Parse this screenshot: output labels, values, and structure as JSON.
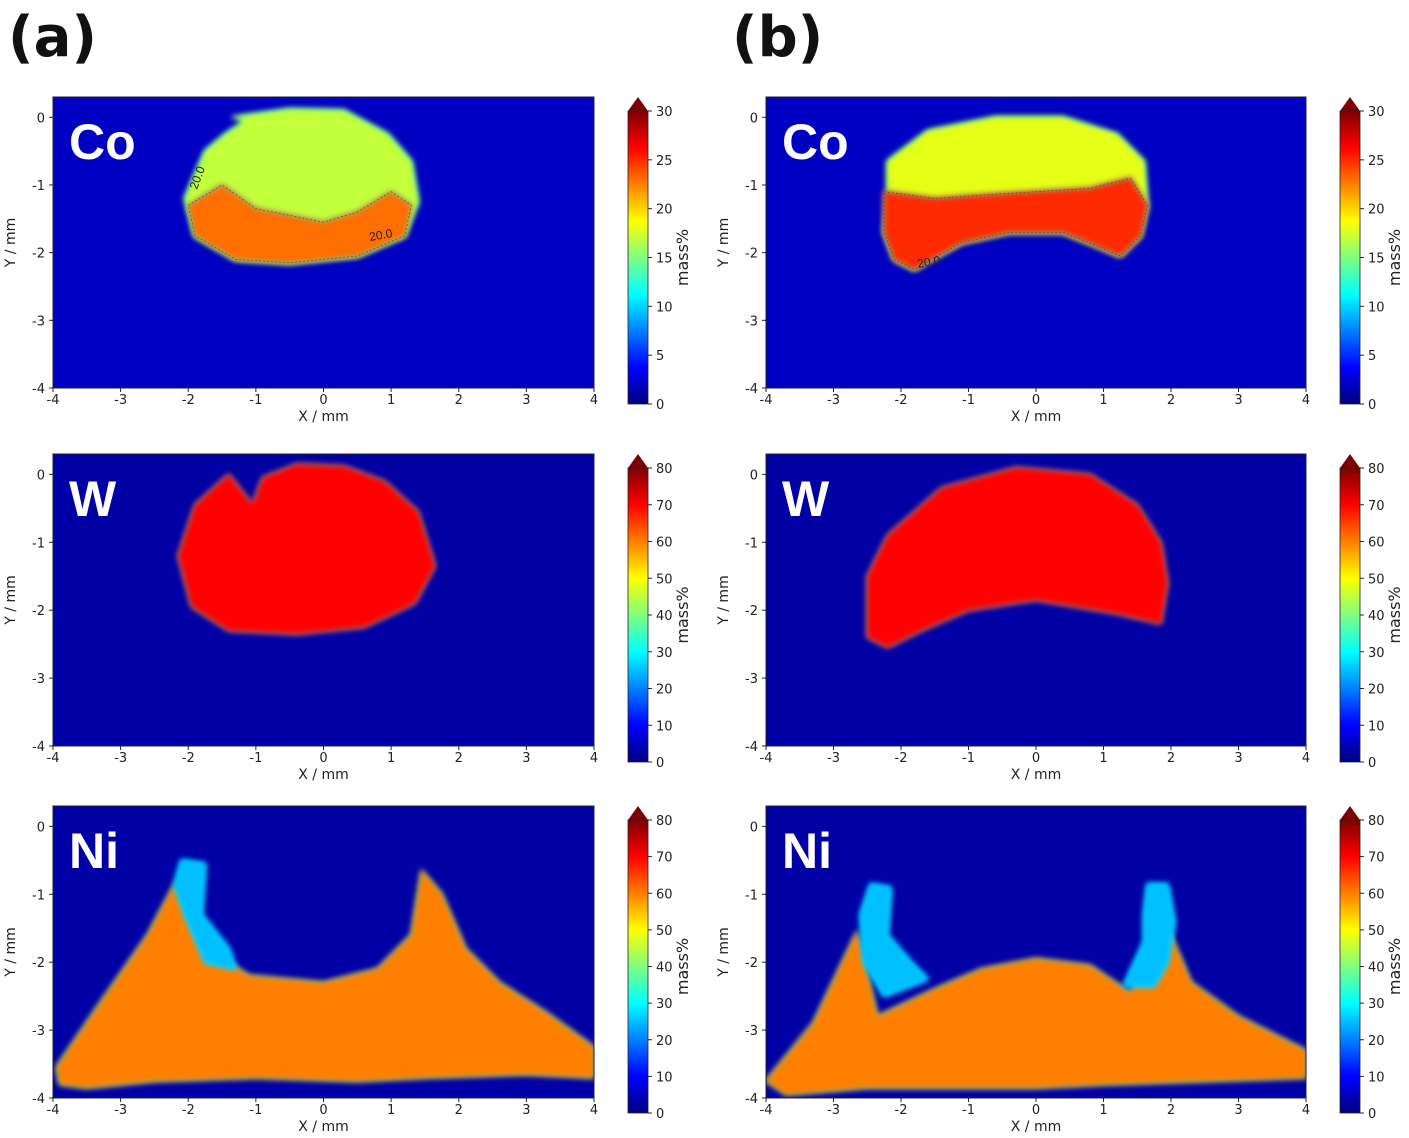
{
  "figure": {
    "panel_labels": [
      "(a)",
      "(b)"
    ]
  },
  "colormap": [
    "#00007f",
    "#0000ff",
    "#007fff",
    "#00ffff",
    "#7fff7f",
    "#ffff00",
    "#ff7f00",
    "#ff0000",
    "#7f0000"
  ],
  "chart_data": [
    {
      "type": "heatmap",
      "panel": "(a)",
      "element": "Co",
      "xlabel": "X / mm",
      "ylabel": "Y / mm",
      "cbar_label": "mass%",
      "xlim": [
        -4,
        4
      ],
      "ylim": [
        -4,
        0.3
      ],
      "xticks": [
        "-4",
        "-3",
        "-2",
        "-1",
        "0",
        "1",
        "2",
        "3",
        "4"
      ],
      "yticks": [
        "0",
        "-1",
        "-2",
        "-3",
        "-4"
      ],
      "cbar_range": [
        0,
        30
      ],
      "cbar_ticks": [
        "0",
        "5",
        "10",
        "15",
        "20",
        "25",
        "30"
      ],
      "background_value": 2,
      "regions": [
        {
          "name": "deposit",
          "value": 17,
          "outline": [
            [
              -1.35,
              0.0
            ],
            [
              -0.5,
              0.12
            ],
            [
              0.3,
              0.1
            ],
            [
              0.95,
              -0.25
            ],
            [
              1.3,
              -0.65
            ],
            [
              1.4,
              -1.25
            ],
            [
              1.2,
              -1.75
            ],
            [
              0.5,
              -2.05
            ],
            [
              -0.5,
              -2.15
            ],
            [
              -1.3,
              -2.1
            ],
            [
              -1.9,
              -1.75
            ],
            [
              -2.05,
              -1.2
            ],
            [
              -1.75,
              -0.5
            ],
            [
              -1.45,
              -0.25
            ],
            [
              -1.15,
              -0.05
            ]
          ]
        },
        {
          "name": "co-rich-lower-band",
          "value": 23,
          "outline": [
            [
              -2.0,
              -1.3
            ],
            [
              -1.5,
              -1.0
            ],
            [
              -1.0,
              -1.35
            ],
            [
              -0.5,
              -1.45
            ],
            [
              0.0,
              -1.55
            ],
            [
              0.5,
              -1.4
            ],
            [
              1.0,
              -1.1
            ],
            [
              1.3,
              -1.3
            ],
            [
              1.2,
              -1.75
            ],
            [
              0.5,
              -2.05
            ],
            [
              -0.5,
              -2.15
            ],
            [
              -1.3,
              -2.1
            ],
            [
              -1.9,
              -1.75
            ]
          ]
        }
      ],
      "contours": [
        {
          "label": "20.0"
        },
        {
          "label": "20.0"
        }
      ]
    },
    {
      "type": "heatmap",
      "panel": "(b)",
      "element": "Co",
      "xlabel": "X / mm",
      "ylabel": "Y / mm",
      "cbar_label": "mass%",
      "xlim": [
        -4,
        4
      ],
      "ylim": [
        -4,
        0.3
      ],
      "xticks": [
        "-4",
        "-3",
        "-2",
        "-1",
        "0",
        "1",
        "2",
        "3",
        "4"
      ],
      "yticks": [
        "0",
        "-1",
        "-2",
        "-3",
        "-4"
      ],
      "cbar_range": [
        0,
        30
      ],
      "cbar_ticks": [
        "0",
        "5",
        "10",
        "15",
        "20",
        "25",
        "30"
      ],
      "background_value": 2,
      "regions": [
        {
          "name": "deposit",
          "value": 18,
          "outline": [
            [
              -2.2,
              -0.65
            ],
            [
              -1.6,
              -0.2
            ],
            [
              -0.6,
              0.0
            ],
            [
              0.4,
              0.0
            ],
            [
              1.2,
              -0.25
            ],
            [
              1.6,
              -0.65
            ],
            [
              1.65,
              -1.3
            ],
            [
              1.55,
              -1.75
            ],
            [
              1.25,
              -2.05
            ],
            [
              0.9,
              -1.9
            ],
            [
              0.4,
              -1.7
            ],
            [
              -0.4,
              -1.7
            ],
            [
              -1.1,
              -1.85
            ],
            [
              -1.55,
              -2.1
            ],
            [
              -1.8,
              -2.25
            ],
            [
              -2.1,
              -2.1
            ],
            [
              -2.25,
              -1.7
            ],
            [
              -2.2,
              -1.2
            ]
          ]
        },
        {
          "name": "co-rich-lower-band",
          "value": 25,
          "outline": [
            [
              -2.25,
              -1.1
            ],
            [
              -1.5,
              -1.2
            ],
            [
              -0.8,
              -1.15
            ],
            [
              0.0,
              -1.1
            ],
            [
              0.8,
              -1.05
            ],
            [
              1.4,
              -0.9
            ],
            [
              1.65,
              -1.3
            ],
            [
              1.55,
              -1.75
            ],
            [
              1.25,
              -2.05
            ],
            [
              0.9,
              -1.9
            ],
            [
              0.4,
              -1.7
            ],
            [
              -0.4,
              -1.7
            ],
            [
              -1.1,
              -1.85
            ],
            [
              -1.55,
              -2.1
            ],
            [
              -1.8,
              -2.25
            ],
            [
              -2.1,
              -2.1
            ],
            [
              -2.25,
              -1.7
            ]
          ]
        }
      ],
      "contours": [
        {
          "label": "20.0"
        }
      ]
    },
    {
      "type": "heatmap",
      "panel": "(a)",
      "element": "W",
      "xlabel": "X / mm",
      "ylabel": "Y / mm",
      "cbar_label": "mass%",
      "xlim": [
        -4,
        4
      ],
      "ylim": [
        -4,
        0.3
      ],
      "xticks": [
        "-4",
        "-3",
        "-2",
        "-1",
        "0",
        "1",
        "2",
        "3",
        "4"
      ],
      "yticks": [
        "0",
        "-1",
        "-2",
        "-3",
        "-4"
      ],
      "cbar_range": [
        0,
        80
      ],
      "cbar_ticks": [
        "0",
        "10",
        "20",
        "30",
        "40",
        "50",
        "60",
        "70",
        "80"
      ],
      "background_value": 3,
      "regions": [
        {
          "name": "deposit",
          "value": 70,
          "outline": [
            [
              -1.4,
              0.0
            ],
            [
              -1.05,
              -0.45
            ],
            [
              -0.9,
              -0.05
            ],
            [
              -0.4,
              0.15
            ],
            [
              0.3,
              0.12
            ],
            [
              0.9,
              -0.1
            ],
            [
              1.4,
              -0.55
            ],
            [
              1.65,
              -1.35
            ],
            [
              1.35,
              -1.9
            ],
            [
              0.6,
              -2.25
            ],
            [
              -0.4,
              -2.35
            ],
            [
              -1.4,
              -2.3
            ],
            [
              -1.95,
              -1.95
            ],
            [
              -2.15,
              -1.2
            ],
            [
              -1.9,
              -0.45
            ]
          ]
        }
      ]
    },
    {
      "type": "heatmap",
      "panel": "(b)",
      "element": "W",
      "xlabel": "X / mm",
      "ylabel": "Y / mm",
      "cbar_label": "mass%",
      "xlim": [
        -4,
        4
      ],
      "ylim": [
        -4,
        0.3
      ],
      "xticks": [
        "-4",
        "-3",
        "-2",
        "-1",
        "0",
        "1",
        "2",
        "3",
        "4"
      ],
      "yticks": [
        "0",
        "-1",
        "-2",
        "-3",
        "-4"
      ],
      "cbar_range": [
        0,
        80
      ],
      "cbar_ticks": [
        "0",
        "10",
        "20",
        "30",
        "40",
        "50",
        "60",
        "70",
        "80"
      ],
      "background_value": 3,
      "regions": [
        {
          "name": "deposit",
          "value": 70,
          "outline": [
            [
              -2.2,
              -0.9
            ],
            [
              -1.4,
              -0.2
            ],
            [
              -0.3,
              0.1
            ],
            [
              0.8,
              0.0
            ],
            [
              1.5,
              -0.45
            ],
            [
              1.85,
              -1.0
            ],
            [
              1.95,
              -1.6
            ],
            [
              1.85,
              -2.2
            ],
            [
              1.2,
              -2.05
            ],
            [
              0.0,
              -1.85
            ],
            [
              -1.0,
              -2.0
            ],
            [
              -1.7,
              -2.3
            ],
            [
              -2.2,
              -2.55
            ],
            [
              -2.5,
              -2.4
            ],
            [
              -2.5,
              -1.5
            ]
          ]
        }
      ]
    },
    {
      "type": "heatmap",
      "panel": "(a)",
      "element": "Ni",
      "xlabel": "X / mm",
      "ylabel": "Y / mm",
      "cbar_label": "mass%",
      "xlim": [
        -4,
        4
      ],
      "ylim": [
        -4,
        0.3
      ],
      "xticks": [
        "-4",
        "-3",
        "-2",
        "-1",
        "0",
        "1",
        "2",
        "3",
        "4"
      ],
      "yticks": [
        "0",
        "-1",
        "-2",
        "-3",
        "-4"
      ],
      "cbar_range": [
        0,
        80
      ],
      "cbar_ticks": [
        "0",
        "10",
        "20",
        "30",
        "40",
        "50",
        "60",
        "70",
        "80"
      ],
      "background_value": 3,
      "regions": [
        {
          "name": "substrate",
          "value": 60,
          "outline": [
            [
              -3.95,
              -3.55
            ],
            [
              -3.3,
              -2.6
            ],
            [
              -2.6,
              -1.6
            ],
            [
              -2.2,
              -0.85
            ],
            [
              -2.05,
              -1.2
            ],
            [
              -1.8,
              -1.75
            ],
            [
              -1.1,
              -2.2
            ],
            [
              0.0,
              -2.3
            ],
            [
              0.8,
              -2.1
            ],
            [
              1.3,
              -1.6
            ],
            [
              1.45,
              -0.65
            ],
            [
              1.75,
              -1.0
            ],
            [
              2.1,
              -1.8
            ],
            [
              2.6,
              -2.3
            ],
            [
              3.3,
              -2.75
            ],
            [
              4.0,
              -3.25
            ],
            [
              4.0,
              -3.7
            ],
            [
              3.0,
              -3.65
            ],
            [
              1.5,
              -3.7
            ],
            [
              0.5,
              -3.75
            ],
            [
              -1.0,
              -3.7
            ],
            [
              -2.5,
              -3.75
            ],
            [
              -3.5,
              -3.85
            ],
            [
              -3.9,
              -3.8
            ]
          ]
        },
        {
          "name": "ni-dilution-fringe",
          "value": 25,
          "outline": [
            [
              -2.1,
              -0.5
            ],
            [
              -1.75,
              -0.55
            ],
            [
              -1.8,
              -1.3
            ],
            [
              -1.4,
              -1.8
            ],
            [
              -1.3,
              -2.1
            ],
            [
              -1.75,
              -2.0
            ],
            [
              -2.05,
              -1.3
            ],
            [
              -2.2,
              -0.85
            ]
          ]
        }
      ]
    },
    {
      "type": "heatmap",
      "panel": "(b)",
      "element": "Ni",
      "xlabel": "X / mm",
      "ylabel": "Y / mm",
      "cbar_label": "mass%",
      "xlim": [
        -4,
        4
      ],
      "ylim": [
        -4,
        0.3
      ],
      "xticks": [
        "-4",
        "-3",
        "-2",
        "-1",
        "0",
        "1",
        "2",
        "3",
        "4"
      ],
      "yticks": [
        "0",
        "-1",
        "-2",
        "-3",
        "-4"
      ],
      "cbar_range": [
        0,
        80
      ],
      "cbar_ticks": [
        "0",
        "10",
        "20",
        "30",
        "40",
        "50",
        "60",
        "70",
        "80"
      ],
      "background_value": 3,
      "regions": [
        {
          "name": "substrate",
          "value": 60,
          "outline": [
            [
              -4.0,
              -3.75
            ],
            [
              -3.3,
              -2.9
            ],
            [
              -2.65,
              -1.55
            ],
            [
              -2.35,
              -2.8
            ],
            [
              -1.5,
              -2.4
            ],
            [
              -0.8,
              -2.1
            ],
            [
              0.0,
              -1.95
            ],
            [
              0.8,
              -2.05
            ],
            [
              1.4,
              -2.45
            ],
            [
              1.95,
              -1.5
            ],
            [
              2.3,
              -2.3
            ],
            [
              3.0,
              -2.8
            ],
            [
              4.0,
              -3.3
            ],
            [
              4.0,
              -3.7
            ],
            [
              2.5,
              -3.75
            ],
            [
              1.0,
              -3.8
            ],
            [
              0.0,
              -3.85
            ],
            [
              -1.0,
              -3.85
            ],
            [
              -2.5,
              -3.85
            ],
            [
              -3.7,
              -3.95
            ]
          ]
        },
        {
          "name": "left-fringe",
          "value": 25,
          "outline": [
            [
              -2.45,
              -0.85
            ],
            [
              -2.15,
              -0.9
            ],
            [
              -2.2,
              -1.6
            ],
            [
              -1.85,
              -2.0
            ],
            [
              -1.6,
              -2.25
            ],
            [
              -2.25,
              -2.5
            ],
            [
              -2.55,
              -2.0
            ],
            [
              -2.6,
              -1.3
            ]
          ]
        },
        {
          "name": "right-fringe",
          "value": 25,
          "outline": [
            [
              1.65,
              -0.85
            ],
            [
              1.95,
              -0.85
            ],
            [
              2.05,
              -1.4
            ],
            [
              1.95,
              -2.0
            ],
            [
              1.75,
              -2.35
            ],
            [
              1.3,
              -2.35
            ],
            [
              1.6,
              -1.7
            ],
            [
              1.6,
              -1.3
            ]
          ]
        }
      ]
    }
  ]
}
